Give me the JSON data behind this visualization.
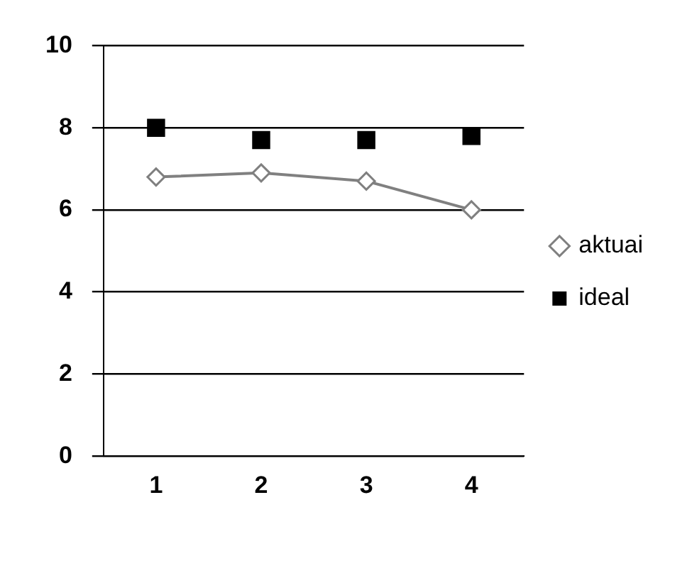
{
  "chart_data": {
    "type": "line",
    "categories": [
      "1",
      "2",
      "3",
      "4"
    ],
    "series": [
      {
        "name": "aktuai",
        "color": "#808080",
        "marker": "diamond",
        "values": [
          6.8,
          6.9,
          6.7,
          6.0
        ]
      },
      {
        "name": "ideal",
        "type": "scatter",
        "color": "#000000",
        "marker": "square",
        "values": [
          8.0,
          7.7,
          7.7,
          7.8
        ]
      }
    ],
    "ylim": [
      0,
      10
    ],
    "yticks": [
      0,
      2,
      4,
      6,
      8,
      10
    ],
    "grid": "y",
    "legend": "right"
  }
}
